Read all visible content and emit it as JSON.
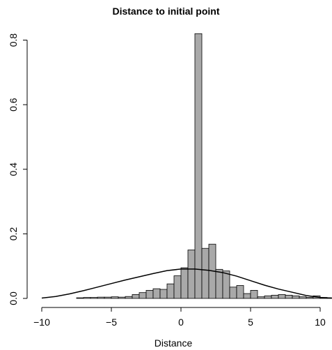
{
  "chart_data": {
    "type": "bar",
    "title": "Distance to initial point",
    "xlabel": "Distance",
    "ylabel": "",
    "xlim": [
      -10.4,
      10.8
    ],
    "ylim": [
      0,
      0.84
    ],
    "x_ticks": [
      -10,
      -5,
      0,
      5,
      10
    ],
    "x_tick_labels": [
      "−10",
      "−5",
      "0",
      "5",
      "10"
    ],
    "y_ticks": [
      0.0,
      0.2,
      0.4,
      0.6,
      0.8
    ],
    "y_tick_labels": [
      "0.0",
      "0.2",
      "0.4",
      "0.6",
      "0.8"
    ],
    "bin_width": 0.5,
    "bin_edges_start": -7.5,
    "histogram_density": [
      0.002,
      0.003,
      0.003,
      0.004,
      0.004,
      0.005,
      0.004,
      0.006,
      0.012,
      0.018,
      0.025,
      0.03,
      0.028,
      0.045,
      0.07,
      0.095,
      0.15,
      0.82,
      0.155,
      0.168,
      0.09,
      0.085,
      0.035,
      0.04,
      0.015,
      0.025,
      0.005,
      0.008,
      0.01,
      0.012,
      0.01,
      0.008,
      0.005,
      0.003,
      0.008,
      0.003,
      0.002
    ],
    "density_curve": {
      "x": [
        -10,
        -9,
        -8,
        -7,
        -6,
        -5,
        -4,
        -3,
        -2,
        -1,
        0,
        1,
        2,
        3,
        4,
        5,
        6,
        7,
        8,
        9,
        10,
        10.8
      ],
      "y": [
        0.001,
        0.006,
        0.014,
        0.024,
        0.035,
        0.046,
        0.057,
        0.067,
        0.077,
        0.086,
        0.091,
        0.091,
        0.087,
        0.08,
        0.069,
        0.055,
        0.041,
        0.029,
        0.019,
        0.009,
        0.003,
        0.001
      ]
    },
    "bar_color": "#a9a9a9",
    "grid": false,
    "legend": "none"
  }
}
